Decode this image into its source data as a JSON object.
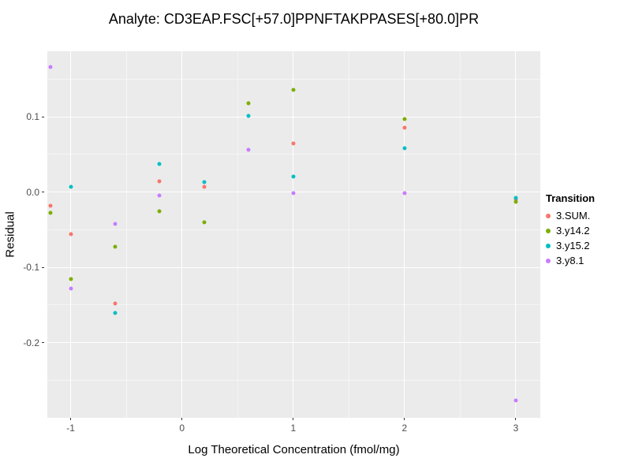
{
  "chart_data": {
    "type": "scatter",
    "title": "Analyte: CD3EAP.FSC[+57.0]PPNFTAKPPASES[+80.0]PR",
    "xlabel": "Log Theoretical Concentration (fmol/mg)",
    "ylabel": "Residual",
    "xlim": [
      -1.21,
      3.22
    ],
    "ylim": [
      -0.3,
      0.187
    ],
    "grid": true,
    "panel_bg": "#EBEBEB",
    "grid_color": "#FFFFFF",
    "x_tick_values": [
      -1,
      0,
      1,
      2,
      3
    ],
    "x_tick_labels": [
      "-1",
      "0",
      "1",
      "2",
      "3"
    ],
    "x_minor_ticks": [
      -0.5,
      0.5,
      1.5,
      2.5
    ],
    "y_tick_values": [
      0.1,
      0.0,
      -0.1,
      -0.2
    ],
    "y_tick_labels": [
      "0.1",
      "0.0",
      "-0.1",
      "-0.2"
    ],
    "y_minor_ticks": [
      0.15,
      0.05,
      -0.05,
      -0.15,
      -0.25
    ],
    "legend_title": "Transition",
    "legend_position": "right",
    "series": [
      {
        "name": "3.SUM.",
        "color": "#F8766D",
        "points": [
          [
            -1.18,
            -0.018
          ],
          [
            -1.0,
            -0.056
          ],
          [
            -0.6,
            -0.148
          ],
          [
            -0.2,
            0.014
          ],
          [
            0.2,
            0.007
          ],
          [
            1.0,
            0.064
          ],
          [
            2.0,
            0.085
          ],
          [
            3.0,
            -0.01
          ]
        ]
      },
      {
        "name": "3.y14.2",
        "color": "#7CAE00",
        "points": [
          [
            -1.18,
            -0.028
          ],
          [
            -1.0,
            -0.116
          ],
          [
            -0.6,
            -0.073
          ],
          [
            -0.2,
            -0.026
          ],
          [
            0.2,
            -0.04
          ],
          [
            0.6,
            0.118
          ],
          [
            1.0,
            0.136
          ],
          [
            2.0,
            0.097
          ],
          [
            3.0,
            -0.013
          ]
        ]
      },
      {
        "name": "3.y15.2",
        "color": "#00BFC4",
        "points": [
          [
            -1.0,
            0.007
          ],
          [
            -0.6,
            -0.161
          ],
          [
            -0.2,
            0.037
          ],
          [
            0.2,
            0.013
          ],
          [
            0.6,
            0.101
          ],
          [
            1.0,
            0.021
          ],
          [
            2.0,
            0.058
          ],
          [
            3.0,
            -0.008
          ]
        ]
      },
      {
        "name": "3.y8.1",
        "color": "#C77CFF",
        "points": [
          [
            -1.18,
            0.166
          ],
          [
            -1.0,
            -0.128
          ],
          [
            -0.6,
            -0.042
          ],
          [
            -0.2,
            -0.005
          ],
          [
            0.6,
            0.056
          ],
          [
            1.0,
            -0.001
          ],
          [
            2.0,
            -0.002
          ],
          [
            3.0,
            -0.277
          ]
        ]
      }
    ]
  }
}
